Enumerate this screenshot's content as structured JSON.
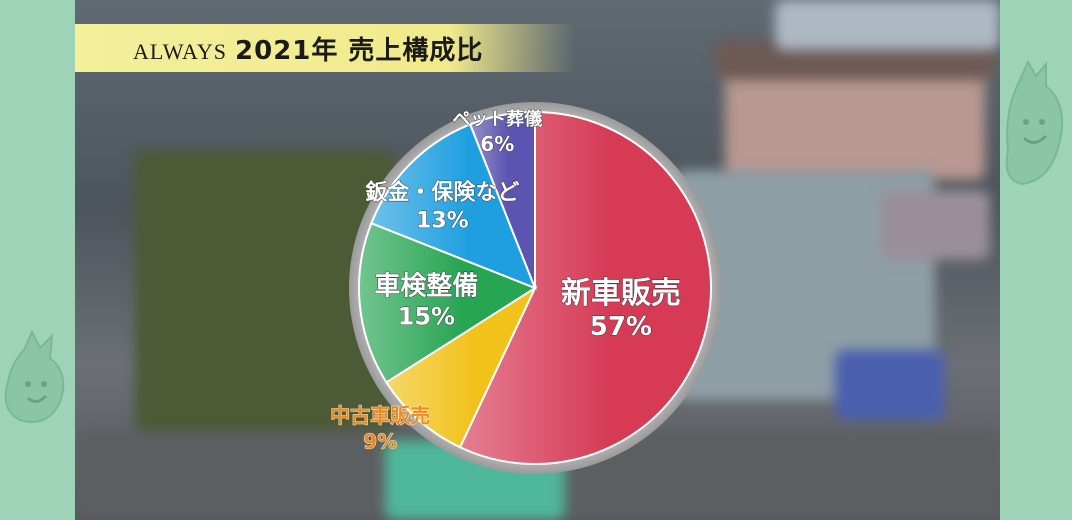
{
  "title": {
    "brand": "ALWAYS",
    "text": "2021年 売上構成比"
  },
  "chart_data": {
    "type": "pie",
    "categories": [
      "新車販売",
      "中古車販売",
      "車検整備",
      "鈑金・保険など",
      "ペット葬儀"
    ],
    "values": [
      57,
      9,
      15,
      13,
      6
    ],
    "value_labels": [
      "57%",
      "9%",
      "15%",
      "13%",
      "6%"
    ],
    "colors": [
      "#d63a55",
      "#f1c21a",
      "#26a552",
      "#1f9fe0",
      "#5b54b0"
    ],
    "label_colors": [
      "#ffffff",
      "#ec8c20",
      "#ffffff",
      "#ffffff",
      "#ffffff"
    ],
    "start": "12 o'clock",
    "direction": "clockwise"
  }
}
